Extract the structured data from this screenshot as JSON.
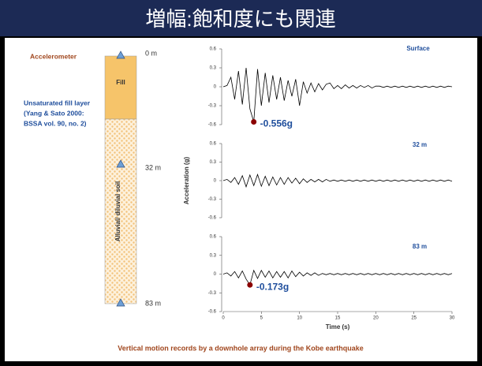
{
  "title": "増幅:飽和度にも関連",
  "caption": "Vertical motion records by a downhole array during the Kobe earthquake",
  "soil_column": {
    "sensor_label": "Accelerometer",
    "note": [
      "Unsaturated fill layer",
      "(Yang & Sato 2000:",
      "BSSA vol. 90, no. 2)"
    ],
    "layers": [
      "Fill",
      "Alluvial/ diluvial soil"
    ],
    "depths": [
      "0 m",
      "32 m",
      "83 m"
    ]
  },
  "chart_data": [
    {
      "type": "line",
      "label": "Surface",
      "color": "#000000",
      "x": [
        0,
        0.5,
        1,
        1.5,
        2,
        2.5,
        3,
        3.5,
        4,
        4.5,
        5,
        5.5,
        6,
        6.5,
        7,
        7.5,
        8,
        8.5,
        9,
        9.5,
        10,
        10.5,
        11,
        11.5,
        12,
        12.5,
        13,
        13.5,
        14,
        14.5,
        15,
        15.5,
        16,
        16.5,
        17,
        17.5,
        18,
        18.5,
        19,
        19.5,
        20,
        20.5,
        21,
        21.5,
        22,
        22.5,
        23,
        23.5,
        24,
        24.5,
        25,
        25.5,
        26,
        26.5,
        27,
        27.5,
        28,
        28.5,
        29,
        29.5,
        30
      ],
      "values": [
        0,
        0.02,
        0.15,
        -0.2,
        0.25,
        -0.28,
        0.3,
        -0.35,
        -0.556,
        0.28,
        -0.3,
        0.22,
        -0.25,
        0.18,
        -0.2,
        0.15,
        -0.22,
        0.1,
        -0.15,
        0.12,
        -0.3,
        0.08,
        -0.1,
        0.06,
        -0.08,
        0.05,
        -0.05,
        0.04,
        0.06,
        -0.03,
        0.02,
        -0.03,
        0.03,
        -0.02,
        0.02,
        -0.02,
        0.02,
        -0.01,
        0.02,
        -0.02,
        0.01,
        0.01,
        -0.01,
        0.01,
        -0.01,
        0.01,
        -0.01,
        0.01,
        -0.01,
        0.01,
        -0.01,
        0.01,
        -0.01,
        0.01,
        -0.01,
        0.01,
        -0.01,
        0.01,
        -0.01,
        0.01,
        0
      ],
      "peak": {
        "x": 4,
        "value": -0.556,
        "label": "-0.556g",
        "color": "#8b0000"
      },
      "xlim": [
        0,
        30
      ],
      "ylim": [
        -0.6,
        0.6
      ],
      "yticks": [
        0.6,
        0.3,
        0,
        -0.3,
        -0.6
      ]
    },
    {
      "type": "line",
      "label": "32 m",
      "color": "#000000",
      "ylabel": "Acceleration (g)",
      "x": [
        0,
        0.5,
        1,
        1.5,
        2,
        2.5,
        3,
        3.5,
        4,
        4.5,
        5,
        5.5,
        6,
        6.5,
        7,
        7.5,
        8,
        8.5,
        9,
        9.5,
        10,
        10.5,
        11,
        11.5,
        12,
        12.5,
        13,
        13.5,
        14,
        14.5,
        15,
        15.5,
        16,
        16.5,
        17,
        17.5,
        18,
        18.5,
        19,
        19.5,
        20,
        20.5,
        21,
        21.5,
        22,
        22.5,
        23,
        23.5,
        24,
        24.5,
        25,
        25.5,
        26,
        26.5,
        27,
        27.5,
        28,
        28.5,
        29,
        29.5,
        30
      ],
      "values": [
        0,
        0.02,
        -0.03,
        0.05,
        -0.06,
        0.08,
        -0.1,
        0.09,
        -0.08,
        0.1,
        -0.09,
        0.07,
        -0.08,
        0.06,
        -0.07,
        0.05,
        -0.06,
        0.05,
        -0.04,
        0.04,
        -0.05,
        0.03,
        -0.03,
        0.02,
        -0.02,
        0.02,
        -0.02,
        0.02,
        -0.01,
        0.01,
        -0.01,
        0.01,
        -0.01,
        0.01,
        -0.01,
        0.01,
        -0.01,
        0.01,
        -0.01,
        0.01,
        -0.01,
        0.01,
        -0.01,
        0.01,
        -0.01,
        0.01,
        -0.01,
        0.01,
        -0.01,
        0.01,
        -0.01,
        0.01,
        -0.01,
        0.01,
        -0.01,
        0.01,
        -0.01,
        0.01,
        -0.01,
        0.01,
        -0.01
      ],
      "xlim": [
        0,
        30
      ],
      "ylim": [
        -0.6,
        0.6
      ],
      "yticks": [
        0.6,
        0.3,
        0,
        -0.3,
        -0.6
      ]
    },
    {
      "type": "line",
      "label": "83 m",
      "color": "#000000",
      "xlabel": "Time (s)",
      "x": [
        0,
        0.5,
        1,
        1.5,
        2,
        2.5,
        3,
        3.5,
        4,
        4.5,
        5,
        5.5,
        6,
        6.5,
        7,
        7.5,
        8,
        8.5,
        9,
        9.5,
        10,
        10.5,
        11,
        11.5,
        12,
        12.5,
        13,
        13.5,
        14,
        14.5,
        15,
        15.5,
        16,
        16.5,
        17,
        17.5,
        18,
        18.5,
        19,
        19.5,
        20,
        20.5,
        21,
        21.5,
        22,
        22.5,
        23,
        23.5,
        24,
        24.5,
        25,
        25.5,
        26,
        26.5,
        27,
        27.5,
        28,
        28.5,
        29,
        29.5,
        30
      ],
      "values": [
        0,
        0.02,
        -0.03,
        0.04,
        -0.06,
        0.05,
        -0.08,
        -0.173,
        0.06,
        -0.07,
        0.06,
        -0.05,
        0.05,
        -0.06,
        0.04,
        -0.05,
        0.04,
        -0.06,
        0.05,
        -0.04,
        0.03,
        -0.03,
        0.02,
        -0.02,
        0.02,
        -0.02,
        0.01,
        -0.01,
        0.01,
        -0.01,
        0.01,
        -0.01,
        0.01,
        -0.01,
        0.01,
        -0.01,
        0.01,
        -0.01,
        0.01,
        -0.01,
        0.01,
        -0.01,
        0.01,
        -0.01,
        0.01,
        -0.01,
        0.01,
        -0.01,
        0.01,
        -0.01,
        0.01,
        -0.01,
        0.01,
        -0.01,
        0.01,
        -0.01,
        0.01,
        -0.01,
        0.01,
        -0.01,
        0.01
      ],
      "peak": {
        "x": 3.5,
        "value": -0.173,
        "label": "-0.173g",
        "color": "#8b0000"
      },
      "xlim": [
        0,
        30
      ],
      "ylim": [
        -0.6,
        0.6
      ],
      "yticks": [
        0.6,
        0.3,
        0,
        -0.3,
        -0.6
      ],
      "xticks": [
        0,
        5,
        10,
        15,
        20,
        25,
        30
      ]
    }
  ]
}
